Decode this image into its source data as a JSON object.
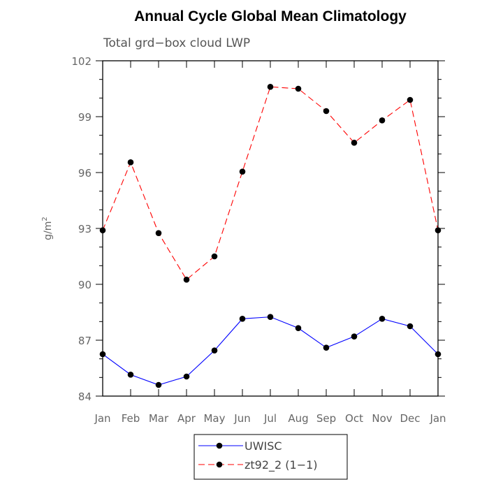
{
  "chart_data": {
    "type": "line",
    "title": "Annual Cycle Global Mean Climatology",
    "subtitle": "Total grd−box cloud LWP",
    "ylabel": "g/m",
    "ylabel_sup": "2",
    "categories": [
      "Jan",
      "Feb",
      "Mar",
      "Apr",
      "May",
      "Jun",
      "Jul",
      "Aug",
      "Sep",
      "Oct",
      "Nov",
      "Dec",
      "Jan"
    ],
    "ylim": [
      84,
      102
    ],
    "yticks": [
      84,
      87,
      90,
      93,
      96,
      99,
      102
    ],
    "series": [
      {
        "name": "UWISC",
        "color": "#0000ff",
        "dash": "solid",
        "values": [
          86.25,
          85.15,
          84.6,
          85.05,
          86.45,
          88.15,
          88.25,
          87.65,
          86.6,
          87.2,
          88.15,
          87.75,
          86.25
        ]
      },
      {
        "name": "zt92_2 (1−1)",
        "color": "#ff0000",
        "dash": "dashed",
        "values": [
          92.9,
          96.55,
          92.75,
          90.25,
          91.5,
          96.05,
          100.6,
          100.5,
          99.3,
          97.6,
          98.8,
          99.9,
          92.9
        ]
      }
    ],
    "legend_position": "bottom",
    "grid": false
  }
}
